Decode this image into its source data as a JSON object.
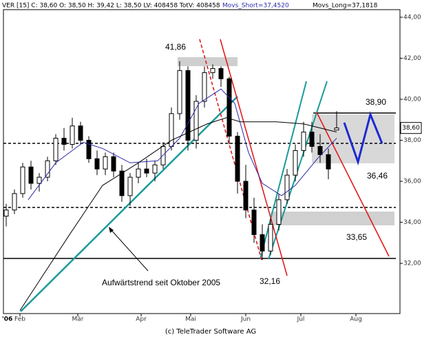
{
  "chart_data": {
    "type": "candlestick",
    "header": "VER [15] C: 38,60 O: 38,50 H: 39,42 L: 38,50 LV: 408458 TotV: 408458",
    "header_short": "Movs_Short=37,4520",
    "header_long": "Movs_Long=37,1818",
    "x": [
      1,
      4,
      7,
      10,
      13,
      16,
      19,
      22,
      25,
      28,
      31,
      34,
      37,
      40,
      43,
      46,
      49,
      52,
      55,
      58,
      61,
      64,
      67,
      70,
      73,
      76,
      79,
      82,
      85,
      88,
      91,
      94,
      97,
      100,
      103,
      106,
      109,
      112,
      115,
      118,
      121
    ],
    "open": [
      34.3,
      34.6,
      35.4,
      36.7,
      35.9,
      36.2,
      37.0,
      38.1,
      37.8,
      38.7,
      38.0,
      37.1,
      36.6,
      37.2,
      36.5,
      35.3,
      36.2,
      36.6,
      36.4,
      36.8,
      37.7,
      39.3,
      41.4,
      38.0,
      39.9,
      41.3,
      41.5,
      41.0,
      38.2,
      36.0,
      34.6,
      33.4,
      32.6,
      33.9,
      35.1,
      36.3,
      37.5,
      38.4,
      37.7,
      37.3,
      38.5
    ],
    "high": [
      34.9,
      35.6,
      36.9,
      37.0,
      36.4,
      37.2,
      38.3,
      38.6,
      39.1,
      38.9,
      38.2,
      37.5,
      37.4,
      37.4,
      36.8,
      36.4,
      36.9,
      37.1,
      37.0,
      37.9,
      39.6,
      41.86,
      41.6,
      40.2,
      41.6,
      41.7,
      41.6,
      41.1,
      38.4,
      36.8,
      35.2,
      33.9,
      34.2,
      35.4,
      36.6,
      37.8,
      38.9,
      38.9,
      38.3,
      37.6,
      39.42
    ],
    "low": [
      33.8,
      34.4,
      35.2,
      35.6,
      35.5,
      36.0,
      36.8,
      37.5,
      37.6,
      37.8,
      36.9,
      36.3,
      36.3,
      36.2,
      35.0,
      34.8,
      35.9,
      36.2,
      36.0,
      36.6,
      37.5,
      39.0,
      37.5,
      37.6,
      39.6,
      41.0,
      40.6,
      37.8,
      35.4,
      34.2,
      33.0,
      32.16,
      32.4,
      33.6,
      34.9,
      36.0,
      37.2,
      37.4,
      36.9,
      36.1,
      38.5
    ],
    "close": [
      34.6,
      35.4,
      36.7,
      35.9,
      36.2,
      37.0,
      38.1,
      37.8,
      38.7,
      38.0,
      37.1,
      36.6,
      37.2,
      36.5,
      35.3,
      36.2,
      36.6,
      36.4,
      36.8,
      37.7,
      39.3,
      41.4,
      38.0,
      39.9,
      41.3,
      41.5,
      41.0,
      38.2,
      36.0,
      34.6,
      33.4,
      32.6,
      33.9,
      35.1,
      36.3,
      37.5,
      38.4,
      37.7,
      37.3,
      36.6,
      38.6
    ],
    "up_color": "#ffffff",
    "down_color": "#000000",
    "lines": [
      {
        "name": "Movs_Short",
        "color": "#2a2aa8",
        "x": [
          9,
          19,
          29,
          36,
          46,
          56,
          64,
          71,
          79,
          84,
          89,
          94,
          101,
          106,
          114,
          121
        ],
        "values": [
          35.1,
          36.9,
          37.9,
          37.6,
          36.9,
          37.0,
          38.1,
          39.8,
          40.5,
          39.8,
          37.4,
          35.9,
          35.3,
          35.8,
          37.1,
          38.1
        ]
      },
      {
        "name": "Movs_Long",
        "color": "#000000",
        "x": [
          6,
          24,
          36,
          49,
          61,
          74,
          81,
          86,
          99,
          109,
          121
        ],
        "values": [
          29.7,
          33.4,
          35.8,
          36.9,
          38.0,
          38.8,
          39.1,
          38.9,
          38.9,
          38.8,
          38.4
        ]
      }
    ],
    "xlim": [
      0,
      144
    ],
    "xticks": [
      {
        "value": 6,
        "label": "Feb"
      },
      {
        "value": 27,
        "label": "Mär"
      },
      {
        "value": 50,
        "label": "Apr"
      },
      {
        "value": 68,
        "label": "Mai"
      },
      {
        "value": 88,
        "label": "Jun"
      },
      {
        "value": 108,
        "label": "Jul"
      },
      {
        "value": 128,
        "label": "Aug"
      }
    ],
    "year_label": "'06",
    "ylim": [
      29.55,
      44.37
    ],
    "yticks": [
      {
        "value": 32,
        "label": "32,00"
      },
      {
        "value": 34,
        "label": "34,00"
      },
      {
        "value": 36,
        "label": "36,00"
      },
      {
        "value": 38,
        "label": "38,00"
      },
      {
        "value": 40,
        "label": "40,00"
      },
      {
        "value": 42,
        "label": "42,00"
      },
      {
        "value": 44,
        "label": "44,00"
      }
    ],
    "last_price": {
      "value": 38.6,
      "label": "38,60"
    },
    "annotations": [
      "41,86",
      "38,90",
      "36,46",
      "33,65",
      "32,16",
      "Aufwärtstrend seit Oktober 2005"
    ],
    "footer": "(c) TeleTrader Software AG"
  }
}
